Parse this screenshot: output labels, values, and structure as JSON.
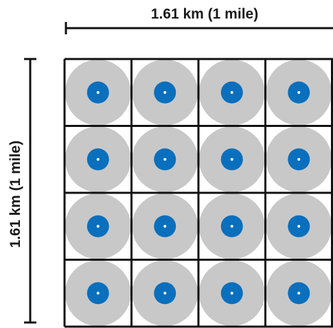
{
  "dimensions": {
    "top_label": "1.61 km (1 mile)",
    "left_label": "1.61 km (1 mile)"
  },
  "grid": {
    "rows": 4,
    "columns": 4
  },
  "colors": {
    "outer_circle": "#c8c8c8",
    "inner_circle": "#0a6fbd",
    "center_dot": "#ffffff",
    "grid_lines": "#111111",
    "dimension_lines": "#111111"
  }
}
